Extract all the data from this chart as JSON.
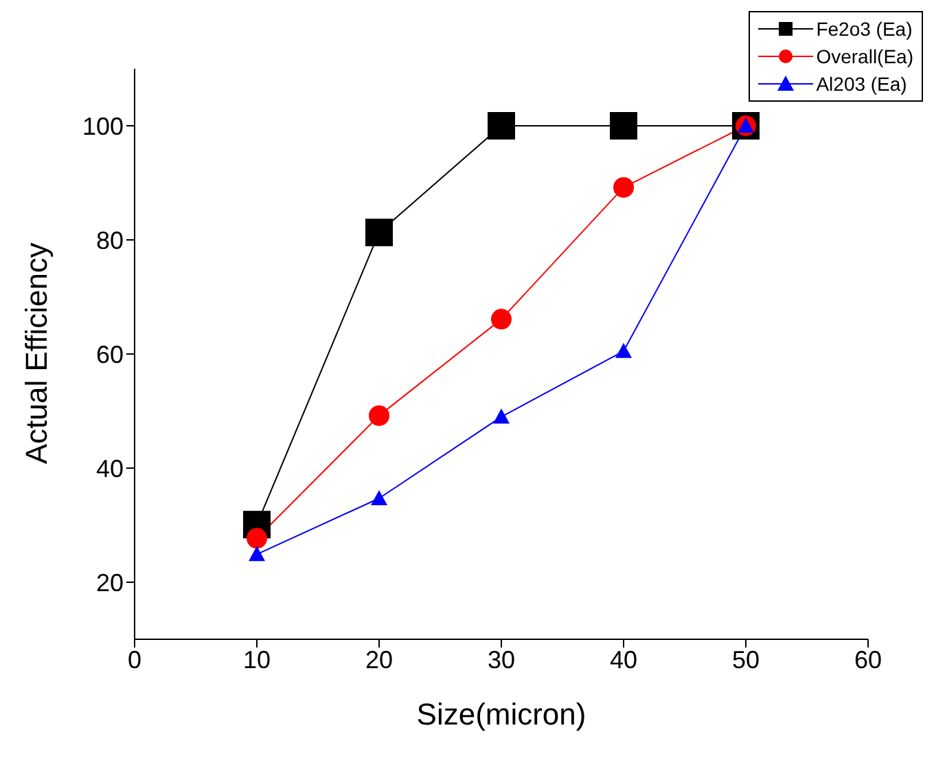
{
  "chart_data": {
    "type": "line",
    "xlabel": "Size(micron)",
    "ylabel": "Actual Efficiency",
    "x": [
      10,
      20,
      30,
      40,
      50
    ],
    "series": [
      {
        "name": "Fe2o3 (Ea)",
        "color": "#000000",
        "marker": "square",
        "values": [
          30.1,
          81.3,
          100,
          100,
          100
        ]
      },
      {
        "name": "Overall(Ea)",
        "color": "#ff0000",
        "marker": "circle",
        "values": [
          27.7,
          49.2,
          66.1,
          89.2,
          100
        ]
      },
      {
        "name": "Al203 (Ea)",
        "color": "#0000ff",
        "marker": "triangle",
        "values": [
          24.9,
          34.7,
          49,
          60.5,
          100
        ]
      }
    ],
    "xlim": [
      0,
      60
    ],
    "xticks": [
      0,
      10,
      20,
      30,
      40,
      50,
      60
    ],
    "ylim": [
      10,
      110
    ],
    "yticks": [
      20,
      40,
      60,
      80,
      100
    ],
    "grid": false,
    "legend": "top right",
    "line_style": "solid"
  }
}
